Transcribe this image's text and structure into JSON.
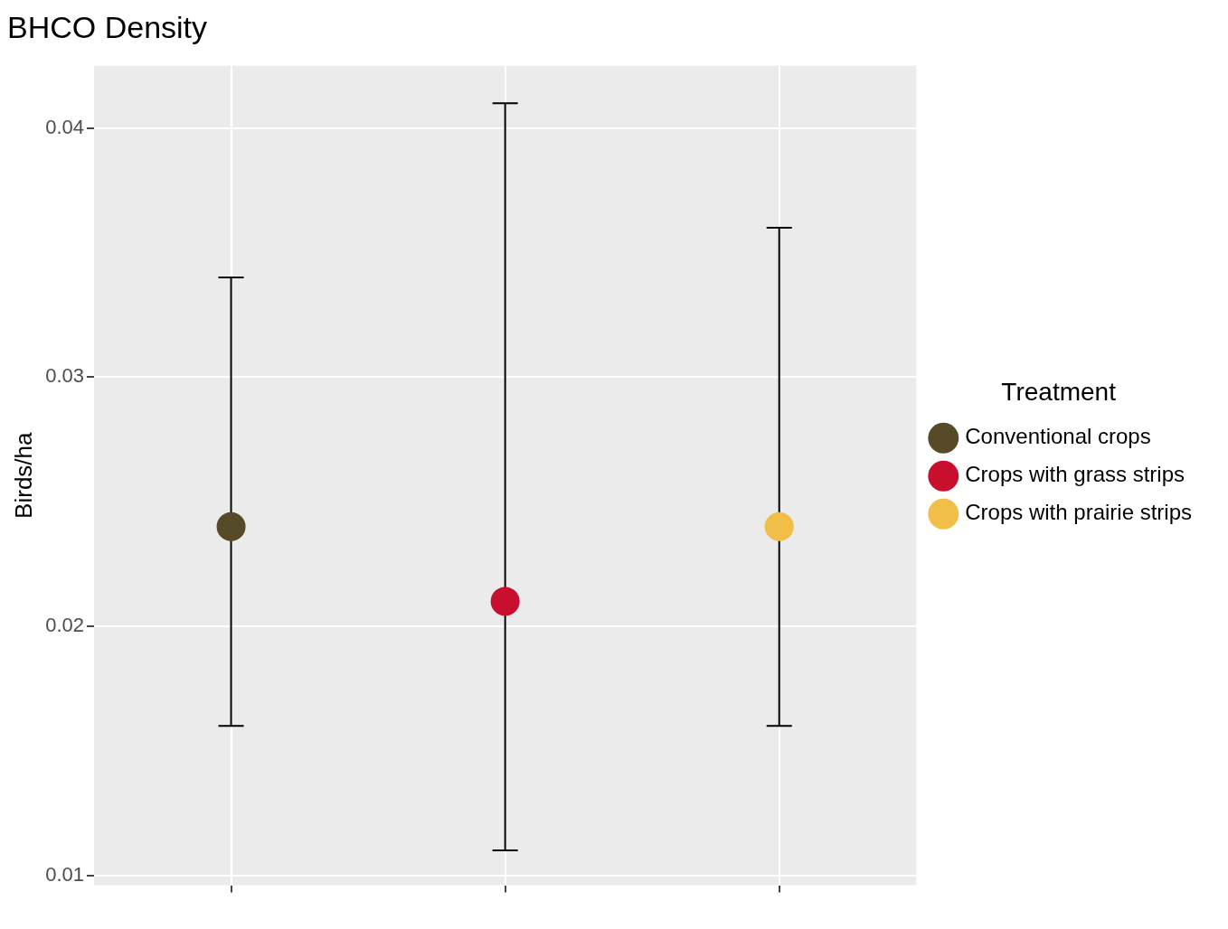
{
  "chart_data": {
    "type": "scatter",
    "title": "BHCO Density",
    "ylabel": "Birds/ha",
    "legend_title": "Treatment",
    "categories": [
      null,
      null,
      null
    ],
    "series": [
      {
        "name": "Conventional crops",
        "color": "#574a28",
        "values": [
          0.024,
          null,
          null
        ],
        "errors": [
          [
            0.016,
            0.034
          ],
          null,
          null
        ]
      },
      {
        "name": "Crops with grass strips",
        "color": "#c8102e",
        "values": [
          null,
          0.021,
          null
        ],
        "errors": [
          null,
          [
            0.011,
            0.041
          ],
          null
        ]
      },
      {
        "name": "Crops with prairie strips",
        "color": "#f1be48",
        "values": [
          null,
          null,
          0.024
        ],
        "errors": [
          null,
          null,
          [
            0.016,
            0.036
          ]
        ]
      }
    ],
    "ylim": [
      0.0096,
      0.0425
    ],
    "yticks": [
      0.01,
      0.02,
      0.03,
      0.04
    ],
    "grid": true,
    "legend": "right",
    "marker": "circle"
  }
}
